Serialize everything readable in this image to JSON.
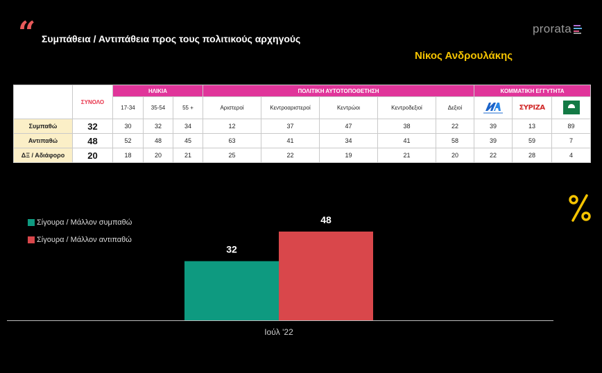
{
  "header": {
    "title": "Συμπάθεια / Αντιπάθεια προς τους πολιτικούς αρχηγούς",
    "subtitle": "Νίκος Ανδρουλάκης",
    "logo": "prorata",
    "quote_mark": "“",
    "percent_symbol": "%"
  },
  "table": {
    "total_header": "ΣΥΝΟΛΟ",
    "groups": [
      {
        "label": "ΗΛΙΚΙΑ",
        "columns": [
          "17-34",
          "35-54",
          "55 +"
        ]
      },
      {
        "label": "ΠΟΛΙΤΙΚΗ ΑΥΤΟΤΟΠΟΘΕΤΗΣΗ",
        "columns": [
          "Αριστεροί",
          "Κεντροαριστεροί",
          "Κεντρώοι",
          "Κεντροδεξιοί",
          "Δεξιοί"
        ]
      },
      {
        "label": "ΚΟΜΜΑΤΙΚΗ ΕΓΓΥΤΗΤΑ",
        "columns": [
          "ΝΔ",
          "ΣΥΡΙΖΑ",
          "ΠΑΣΟΚ"
        ]
      }
    ],
    "party_logo_text": {
      "syriza": "ΣΥΡΙΖΑ"
    },
    "rows": [
      {
        "label": "Συμπαθώ",
        "total": "32",
        "values": [
          "30",
          "32",
          "34",
          "12",
          "37",
          "47",
          "38",
          "22",
          "39",
          "13",
          "89"
        ]
      },
      {
        "label": "Αντιπαθώ",
        "total": "48",
        "values": [
          "52",
          "48",
          "45",
          "63",
          "41",
          "34",
          "41",
          "58",
          "39",
          "59",
          "7"
        ]
      },
      {
        "label": "ΔΞ / Αδιάφορο",
        "total": "20",
        "values": [
          "18",
          "20",
          "21",
          "25",
          "22",
          "19",
          "21",
          "20",
          "22",
          "28",
          "4"
        ]
      }
    ]
  },
  "chart_data": {
    "type": "bar",
    "categories": [
      "Ιούλ '22"
    ],
    "series": [
      {
        "name": "Σίγουρα / Μάλλον συμπαθώ",
        "values": [
          32
        ],
        "color": "#0e9a80"
      },
      {
        "name": "Σίγουρα / Μάλλον αντιπαθώ",
        "values": [
          48
        ],
        "color": "#d9474b"
      }
    ],
    "ylim": [
      0,
      60
    ],
    "grid": false,
    "legend": "top-left",
    "data_labels": true
  }
}
